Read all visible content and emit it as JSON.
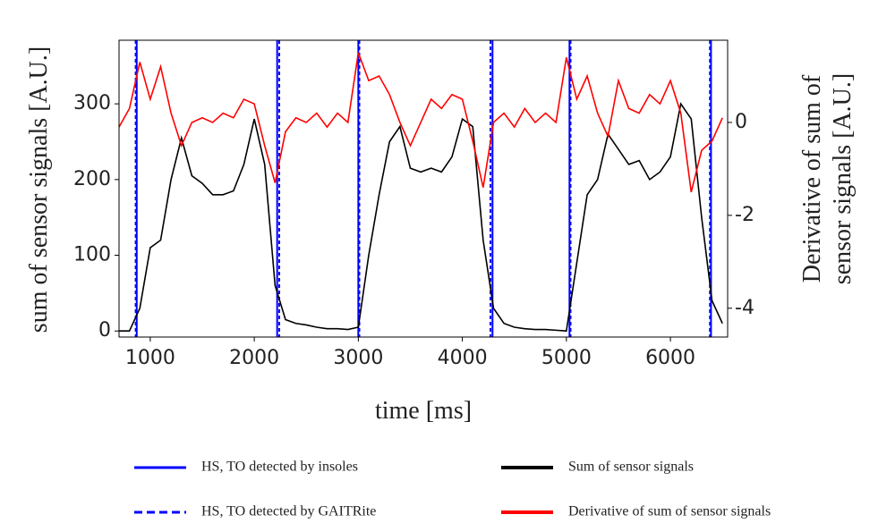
{
  "chart_data": {
    "type": "line",
    "xlabel": "time [ms]",
    "ylabel": "sum of sensor signals [A.U.]",
    "y2label": [
      "Derivative of  sum of",
      "sensor signals [A.U.]"
    ],
    "x": [
      700,
      800,
      900,
      1000,
      1100,
      1200,
      1300,
      1400,
      1500,
      1600,
      1700,
      1800,
      1900,
      2000,
      2100,
      2200,
      2300,
      2400,
      2500,
      2600,
      2700,
      2800,
      2900,
      3000,
      3100,
      3200,
      3300,
      3400,
      3500,
      3600,
      3700,
      3800,
      3900,
      4000,
      4100,
      4200,
      4300,
      4400,
      4500,
      4600,
      4700,
      4800,
      4900,
      5000,
      5100,
      5200,
      5300,
      5400,
      5500,
      5600,
      5700,
      5800,
      5900,
      6000,
      6100,
      6200,
      6300,
      6400,
      6500
    ],
    "series": [
      {
        "name": "Sum of sensor signals",
        "color": "#000000",
        "values": [
          0,
          0,
          30,
          110,
          120,
          200,
          255,
          205,
          195,
          180,
          180,
          185,
          220,
          280,
          220,
          60,
          15,
          10,
          8,
          5,
          3,
          3,
          2,
          5,
          100,
          180,
          250,
          270,
          215,
          210,
          215,
          210,
          230,
          280,
          270,
          120,
          30,
          10,
          5,
          3,
          2,
          2,
          1,
          0,
          90,
          180,
          200,
          260,
          240,
          220,
          225,
          200,
          210,
          230,
          300,
          280,
          150,
          40,
          10
        ]
      },
      {
        "name": "Derivative of sum of sensor signals",
        "color": "#ff0000",
        "axis": "y2",
        "values": [
          -0.1,
          0.3,
          1.3,
          0.5,
          1.2,
          0.2,
          -0.5,
          0,
          0.1,
          0,
          0.2,
          0.1,
          0.5,
          0.4,
          -0.5,
          -1.3,
          -0.2,
          0.1,
          0,
          0.2,
          -0.1,
          0.2,
          0,
          1.5,
          0.9,
          1.0,
          0.6,
          0,
          -0.5,
          0,
          0.5,
          0.3,
          0.6,
          0.5,
          -0.4,
          -1.4,
          0,
          0.2,
          -0.1,
          0.3,
          0,
          0.2,
          0,
          1.4,
          0.5,
          1.0,
          0.2,
          -0.3,
          0.9,
          0.3,
          0.2,
          0.6,
          0.4,
          0.9,
          0.2,
          -1.5,
          -0.6,
          -0.4,
          0.1
        ]
      }
    ],
    "events": [
      {
        "name": "HS, TO detected by  insoles",
        "color": "#0000ff",
        "dashed": false,
        "x": [
          870,
          2220,
          3000,
          4290,
          5030,
          6390
        ]
      },
      {
        "name": "HS, TO detected by GAITRite",
        "color": "#0000ff",
        "dashed": true,
        "x": [
          860,
          2240,
          3010,
          4270,
          5040,
          6380
        ]
      }
    ],
    "xlim": [
      700,
      6550
    ],
    "xticks": [
      1000,
      2000,
      3000,
      4000,
      5000,
      6000
    ],
    "ylim": [
      -8,
      384
    ],
    "yticks": [
      0,
      100,
      200,
      300
    ],
    "y2lim": [
      -4.62,
      1.77
    ],
    "y2ticks": [
      -4,
      -2,
      0
    ]
  }
}
